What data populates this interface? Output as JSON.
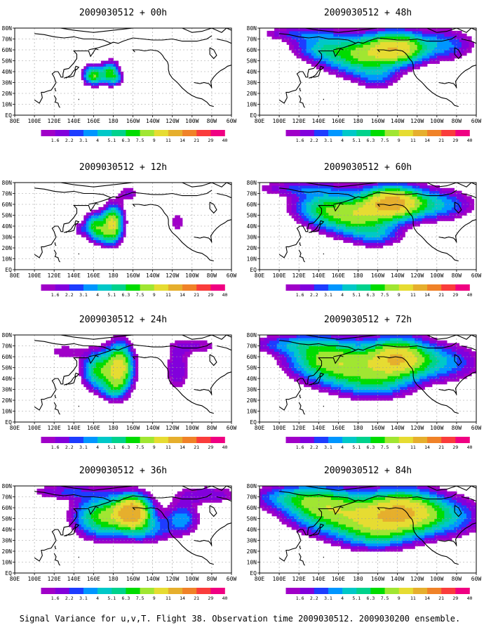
{
  "figure_caption": "Signal Variance for u,v,T. Flight 38. Observation time 2009030512. 2009030200 ensemble.",
  "colorbar": {
    "labels": [
      "1.6",
      "2.2",
      "3.1",
      "4",
      "5.1",
      "6.3",
      "7.5",
      "9",
      "11",
      "14",
      "21",
      "29",
      "40"
    ],
    "colors": [
      "#a000c8",
      "#8200dc",
      "#1e3cff",
      "#0096ff",
      "#00c8c8",
      "#00d28c",
      "#00dc00",
      "#a0e632",
      "#e6dc32",
      "#e6af2d",
      "#f08228",
      "#fa3c3c",
      "#f00082"
    ]
  },
  "axes": {
    "x_ticks": [
      "80E",
      "100E",
      "120E",
      "140E",
      "160E",
      "180",
      "160W",
      "140W",
      "120W",
      "100W",
      "80W",
      "60W"
    ],
    "y_ticks": [
      "EQ",
      "10N",
      "20N",
      "30N",
      "40N",
      "50N",
      "60N",
      "70N",
      "80N"
    ]
  },
  "chart_data": [
    {
      "type": "heatmap",
      "title": "2009030512 + 00h",
      "lead_hours": 0,
      "xlim": [
        80,
        300
      ],
      "ylim": [
        0,
        80
      ],
      "blobs": [
        {
          "lon": 160,
          "lat": 37,
          "sx": 7,
          "sy": 6,
          "a": 9
        },
        {
          "lon": 177,
          "lat": 39,
          "sx": 6,
          "sy": 7,
          "a": 8
        },
        {
          "lon": 184,
          "lat": 34,
          "sx": 4,
          "sy": 4,
          "a": 3
        }
      ]
    },
    {
      "type": "heatmap",
      "title": "2009030512 + 12h",
      "lead_hours": 12,
      "xlim": [
        80,
        300
      ],
      "ylim": [
        0,
        80
      ],
      "blobs": [
        {
          "lon": 162,
          "lat": 40,
          "sx": 8,
          "sy": 8,
          "a": 8
        },
        {
          "lon": 180,
          "lat": 43,
          "sx": 7,
          "sy": 11,
          "a": 11
        },
        {
          "lon": 172,
          "lat": 30,
          "sx": 8,
          "sy": 6,
          "a": 3
        },
        {
          "lon": 196,
          "lat": 70,
          "sx": 8,
          "sy": 5,
          "a": 2.5
        },
        {
          "lon": 245,
          "lat": 44,
          "sx": 6,
          "sy": 7,
          "a": 2.2
        },
        {
          "lon": 145,
          "lat": 37,
          "sx": 4,
          "sy": 4,
          "a": 2
        }
      ]
    },
    {
      "type": "heatmap",
      "title": "2009030512 + 24h",
      "lead_hours": 24,
      "xlim": [
        80,
        300
      ],
      "ylim": [
        0,
        80
      ],
      "blobs": [
        {
          "lon": 165,
          "lat": 48,
          "sx": 11,
          "sy": 12,
          "a": 8
        },
        {
          "lon": 187,
          "lat": 50,
          "sx": 9,
          "sy": 15,
          "a": 12
        },
        {
          "lon": 178,
          "lat": 30,
          "sx": 8,
          "sy": 7,
          "a": 3
        },
        {
          "lon": 245,
          "lat": 48,
          "sx": 9,
          "sy": 15,
          "a": 3
        },
        {
          "lon": 265,
          "lat": 70,
          "sx": 20,
          "sy": 6,
          "a": 2.2
        },
        {
          "lon": 130,
          "lat": 65,
          "sx": 15,
          "sy": 6,
          "a": 2
        }
      ]
    },
    {
      "type": "heatmap",
      "title": "2009030512 + 36h",
      "lead_hours": 36,
      "xlim": [
        80,
        300
      ],
      "ylim": [
        0,
        80
      ],
      "blobs": [
        {
          "lon": 170,
          "lat": 52,
          "sx": 20,
          "sy": 13,
          "a": 9
        },
        {
          "lon": 200,
          "lat": 57,
          "sx": 12,
          "sy": 10,
          "a": 15
        },
        {
          "lon": 215,
          "lat": 40,
          "sx": 17,
          "sy": 9,
          "a": 4
        },
        {
          "lon": 250,
          "lat": 50,
          "sx": 12,
          "sy": 10,
          "a": 4.5
        },
        {
          "lon": 275,
          "lat": 72,
          "sx": 25,
          "sy": 6,
          "a": 3
        },
        {
          "lon": 130,
          "lat": 75,
          "sx": 25,
          "sy": 5,
          "a": 3
        }
      ]
    },
    {
      "type": "heatmap",
      "title": "2009030512 + 48h",
      "lead_hours": 48,
      "xlim": [
        80,
        300
      ],
      "ylim": [
        0,
        80
      ],
      "blobs": [
        {
          "lon": 180,
          "lat": 55,
          "sx": 25,
          "sy": 12,
          "a": 8
        },
        {
          "lon": 220,
          "lat": 62,
          "sx": 20,
          "sy": 10,
          "a": 12
        },
        {
          "lon": 140,
          "lat": 62,
          "sx": 20,
          "sy": 8,
          "a": 4
        },
        {
          "lon": 200,
          "lat": 35,
          "sx": 15,
          "sy": 8,
          "a": 3
        },
        {
          "lon": 270,
          "lat": 65,
          "sx": 20,
          "sy": 10,
          "a": 4
        },
        {
          "lon": 120,
          "lat": 75,
          "sx": 30,
          "sy": 5,
          "a": 3
        }
      ]
    },
    {
      "type": "heatmap",
      "title": "2009030512 + 60h",
      "lead_hours": 60,
      "xlim": [
        80,
        300
      ],
      "ylim": [
        0,
        80
      ],
      "blobs": [
        {
          "lon": 175,
          "lat": 50,
          "sx": 25,
          "sy": 12,
          "a": 9
        },
        {
          "lon": 215,
          "lat": 62,
          "sx": 20,
          "sy": 10,
          "a": 14
        },
        {
          "lon": 140,
          "lat": 58,
          "sx": 20,
          "sy": 10,
          "a": 5
        },
        {
          "lon": 260,
          "lat": 60,
          "sx": 25,
          "sy": 10,
          "a": 5
        },
        {
          "lon": 200,
          "lat": 32,
          "sx": 18,
          "sy": 8,
          "a": 3.5
        },
        {
          "lon": 120,
          "lat": 75,
          "sx": 35,
          "sy": 5,
          "a": 3
        }
      ]
    },
    {
      "type": "heatmap",
      "title": "2009030512 + 72h",
      "lead_hours": 72,
      "xlim": [
        80,
        300
      ],
      "ylim": [
        0,
        80
      ],
      "blobs": [
        {
          "lon": 170,
          "lat": 52,
          "sx": 30,
          "sy": 14,
          "a": 8
        },
        {
          "lon": 220,
          "lat": 60,
          "sx": 20,
          "sy": 12,
          "a": 11
        },
        {
          "lon": 140,
          "lat": 60,
          "sx": 25,
          "sy": 12,
          "a": 5
        },
        {
          "lon": 260,
          "lat": 55,
          "sx": 30,
          "sy": 12,
          "a": 5
        },
        {
          "lon": 200,
          "lat": 35,
          "sx": 25,
          "sy": 10,
          "a": 4
        },
        {
          "lon": 110,
          "lat": 72,
          "sx": 30,
          "sy": 6,
          "a": 3.5
        }
      ]
    },
    {
      "type": "heatmap",
      "title": "2009030512 + 84h",
      "lead_hours": 84,
      "xlim": [
        80,
        300
      ],
      "ylim": [
        0,
        80
      ],
      "blobs": [
        {
          "lon": 180,
          "lat": 52,
          "sx": 35,
          "sy": 14,
          "a": 8
        },
        {
          "lon": 225,
          "lat": 58,
          "sx": 25,
          "sy": 13,
          "a": 10
        },
        {
          "lon": 140,
          "lat": 62,
          "sx": 25,
          "sy": 12,
          "a": 6
        },
        {
          "lon": 265,
          "lat": 52,
          "sx": 30,
          "sy": 13,
          "a": 5
        },
        {
          "lon": 110,
          "lat": 70,
          "sx": 30,
          "sy": 8,
          "a": 4
        },
        {
          "lon": 200,
          "lat": 35,
          "sx": 25,
          "sy": 10,
          "a": 4
        }
      ]
    }
  ]
}
